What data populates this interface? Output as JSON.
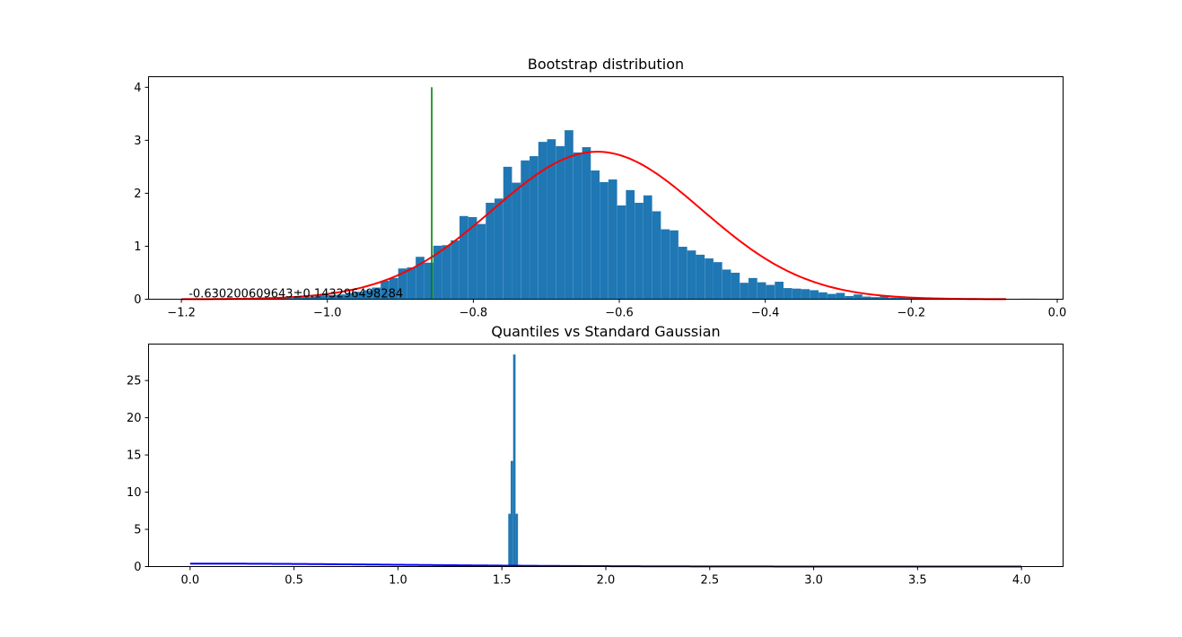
{
  "colors": {
    "bars": "#1f77b4",
    "fit_curve": "#ff0000",
    "reference_line": "#008000",
    "gaussian_curve": "#0000ff"
  },
  "chart_data": [
    {
      "type": "bar",
      "title": "Bootstrap distribution",
      "xlabel": "",
      "ylabel": "",
      "xlim": [
        -1.245,
        0.008
      ],
      "ylim": [
        0,
        4.2
      ],
      "xticks": [
        -1.2,
        -1.0,
        -0.8,
        -0.6,
        -0.4,
        -0.2,
        0.0
      ],
      "xtick_labels": [
        "−1.2",
        "−1.0",
        "−0.8",
        "−0.6",
        "−0.4",
        "−0.2",
        "0.0"
      ],
      "yticks": [
        0,
        1,
        2,
        3,
        4
      ],
      "ytick_labels": [
        "0",
        "1",
        "2",
        "3",
        "4"
      ],
      "bin_width": 0.0119,
      "bins": [
        {
          "x": -1.185,
          "value": 0.01
        },
        {
          "x": -1.173,
          "value": 0.01
        },
        {
          "x": -1.161,
          "value": 0.0
        },
        {
          "x": -1.149,
          "value": 0.01
        },
        {
          "x": -1.137,
          "value": 0.0
        },
        {
          "x": -1.125,
          "value": 0.01
        },
        {
          "x": -1.113,
          "value": 0.01
        },
        {
          "x": -1.101,
          "value": 0.0
        },
        {
          "x": -1.089,
          "value": 0.02
        },
        {
          "x": -1.077,
          "value": 0.01
        },
        {
          "x": -1.065,
          "value": 0.03
        },
        {
          "x": -1.053,
          "value": 0.02
        },
        {
          "x": -1.041,
          "value": 0.03
        },
        {
          "x": -1.029,
          "value": 0.04
        },
        {
          "x": -1.017,
          "value": 0.05
        },
        {
          "x": -1.005,
          "value": 0.07
        },
        {
          "x": -0.993,
          "value": 0.08
        },
        {
          "x": -0.981,
          "value": 0.09
        },
        {
          "x": -0.969,
          "value": 0.11
        },
        {
          "x": -0.957,
          "value": 0.14
        },
        {
          "x": -0.945,
          "value": 0.17
        },
        {
          "x": -0.933,
          "value": 0.22
        },
        {
          "x": -0.921,
          "value": 0.35
        },
        {
          "x": -0.909,
          "value": 0.4
        },
        {
          "x": -0.897,
          "value": 0.58
        },
        {
          "x": -0.885,
          "value": 0.6
        },
        {
          "x": -0.873,
          "value": 0.8
        },
        {
          "x": -0.861,
          "value": 0.69
        },
        {
          "x": -0.849,
          "value": 1.01
        },
        {
          "x": -0.837,
          "value": 1.02
        },
        {
          "x": -0.825,
          "value": 1.11
        },
        {
          "x": -0.813,
          "value": 1.57
        },
        {
          "x": -0.801,
          "value": 1.55
        },
        {
          "x": -0.789,
          "value": 1.42
        },
        {
          "x": -0.777,
          "value": 1.82
        },
        {
          "x": -0.765,
          "value": 1.9
        },
        {
          "x": -0.753,
          "value": 2.5
        },
        {
          "x": -0.741,
          "value": 2.2
        },
        {
          "x": -0.729,
          "value": 2.62
        },
        {
          "x": -0.717,
          "value": 2.7
        },
        {
          "x": -0.705,
          "value": 2.97
        },
        {
          "x": -0.693,
          "value": 3.02
        },
        {
          "x": -0.681,
          "value": 2.89
        },
        {
          "x": -0.669,
          "value": 3.19
        },
        {
          "x": -0.657,
          "value": 2.77
        },
        {
          "x": -0.645,
          "value": 2.87
        },
        {
          "x": -0.633,
          "value": 2.43
        },
        {
          "x": -0.621,
          "value": 2.21
        },
        {
          "x": -0.609,
          "value": 2.26
        },
        {
          "x": -0.597,
          "value": 1.77
        },
        {
          "x": -0.585,
          "value": 2.06
        },
        {
          "x": -0.573,
          "value": 1.82
        },
        {
          "x": -0.561,
          "value": 1.96
        },
        {
          "x": -0.549,
          "value": 1.66
        },
        {
          "x": -0.537,
          "value": 1.32
        },
        {
          "x": -0.525,
          "value": 1.3
        },
        {
          "x": -0.513,
          "value": 0.99
        },
        {
          "x": -0.501,
          "value": 0.92
        },
        {
          "x": -0.489,
          "value": 0.84
        },
        {
          "x": -0.477,
          "value": 0.77
        },
        {
          "x": -0.465,
          "value": 0.7
        },
        {
          "x": -0.453,
          "value": 0.56
        },
        {
          "x": -0.441,
          "value": 0.5
        },
        {
          "x": -0.429,
          "value": 0.31
        },
        {
          "x": -0.417,
          "value": 0.4
        },
        {
          "x": -0.405,
          "value": 0.32
        },
        {
          "x": -0.393,
          "value": 0.27
        },
        {
          "x": -0.381,
          "value": 0.33
        },
        {
          "x": -0.369,
          "value": 0.21
        },
        {
          "x": -0.357,
          "value": 0.2
        },
        {
          "x": -0.345,
          "value": 0.19
        },
        {
          "x": -0.333,
          "value": 0.17
        },
        {
          "x": -0.321,
          "value": 0.13
        },
        {
          "x": -0.309,
          "value": 0.1
        },
        {
          "x": -0.297,
          "value": 0.12
        },
        {
          "x": -0.285,
          "value": 0.06
        },
        {
          "x": -0.273,
          "value": 0.09
        },
        {
          "x": -0.261,
          "value": 0.05
        },
        {
          "x": -0.249,
          "value": 0.04
        },
        {
          "x": -0.237,
          "value": 0.06
        },
        {
          "x": -0.225,
          "value": 0.03
        },
        {
          "x": -0.213,
          "value": 0.03
        },
        {
          "x": -0.201,
          "value": 0.02
        },
        {
          "x": -0.189,
          "value": 0.02
        },
        {
          "x": -0.177,
          "value": 0.01
        },
        {
          "x": -0.165,
          "value": 0.02
        },
        {
          "x": -0.153,
          "value": 0.01
        },
        {
          "x": -0.141,
          "value": 0.01
        },
        {
          "x": -0.129,
          "value": 0.01
        },
        {
          "x": -0.117,
          "value": 0.02
        },
        {
          "x": -0.105,
          "value": 0.01
        },
        {
          "x": -0.093,
          "value": 0.0
        },
        {
          "x": -0.081,
          "value": 0.01
        },
        {
          "x": -0.069,
          "value": 0.0
        },
        {
          "x": -0.057,
          "value": 0.0
        },
        {
          "x": -0.045,
          "value": 0.01
        },
        {
          "x": -0.033,
          "value": 0.01
        }
      ],
      "fit_curve": {
        "type": "gaussian",
        "mean": -0.630200609643,
        "std": 0.143296498284,
        "x_range": [
          -1.2,
          -0.07
        ]
      },
      "vline": {
        "x": -0.857,
        "y_range": [
          0,
          4.0
        ]
      },
      "annotation": {
        "text": "-0.630200609643±0.143296498284",
        "x": -1.19,
        "y": 0.0
      }
    },
    {
      "type": "bar",
      "title": "Quantiles vs Standard Gaussian",
      "xlabel": "",
      "ylabel": "",
      "xlim": [
        -0.2,
        4.2
      ],
      "ylim": [
        0,
        29.9
      ],
      "xticks": [
        0.0,
        0.5,
        1.0,
        1.5,
        2.0,
        2.5,
        3.0,
        3.5,
        4.0
      ],
      "xtick_labels": [
        "0.0",
        "0.5",
        "1.0",
        "1.5",
        "2.0",
        "2.5",
        "3.0",
        "3.5",
        "4.0"
      ],
      "yticks": [
        0,
        5,
        10,
        15,
        20,
        25
      ],
      "ytick_labels": [
        "0",
        "5",
        "10",
        "15",
        "20",
        "25"
      ],
      "bin_width": 0.0117,
      "bins": [
        {
          "x": 1.5365,
          "value": 7.1
        },
        {
          "x": 1.5482,
          "value": 14.2
        },
        {
          "x": 1.5599,
          "value": 28.5
        },
        {
          "x": 1.5716,
          "value": 7.1
        }
      ],
      "gaussian_curve": {
        "type": "standard_normal_pdf",
        "x_range": [
          0.0,
          4.0
        ]
      }
    }
  ]
}
